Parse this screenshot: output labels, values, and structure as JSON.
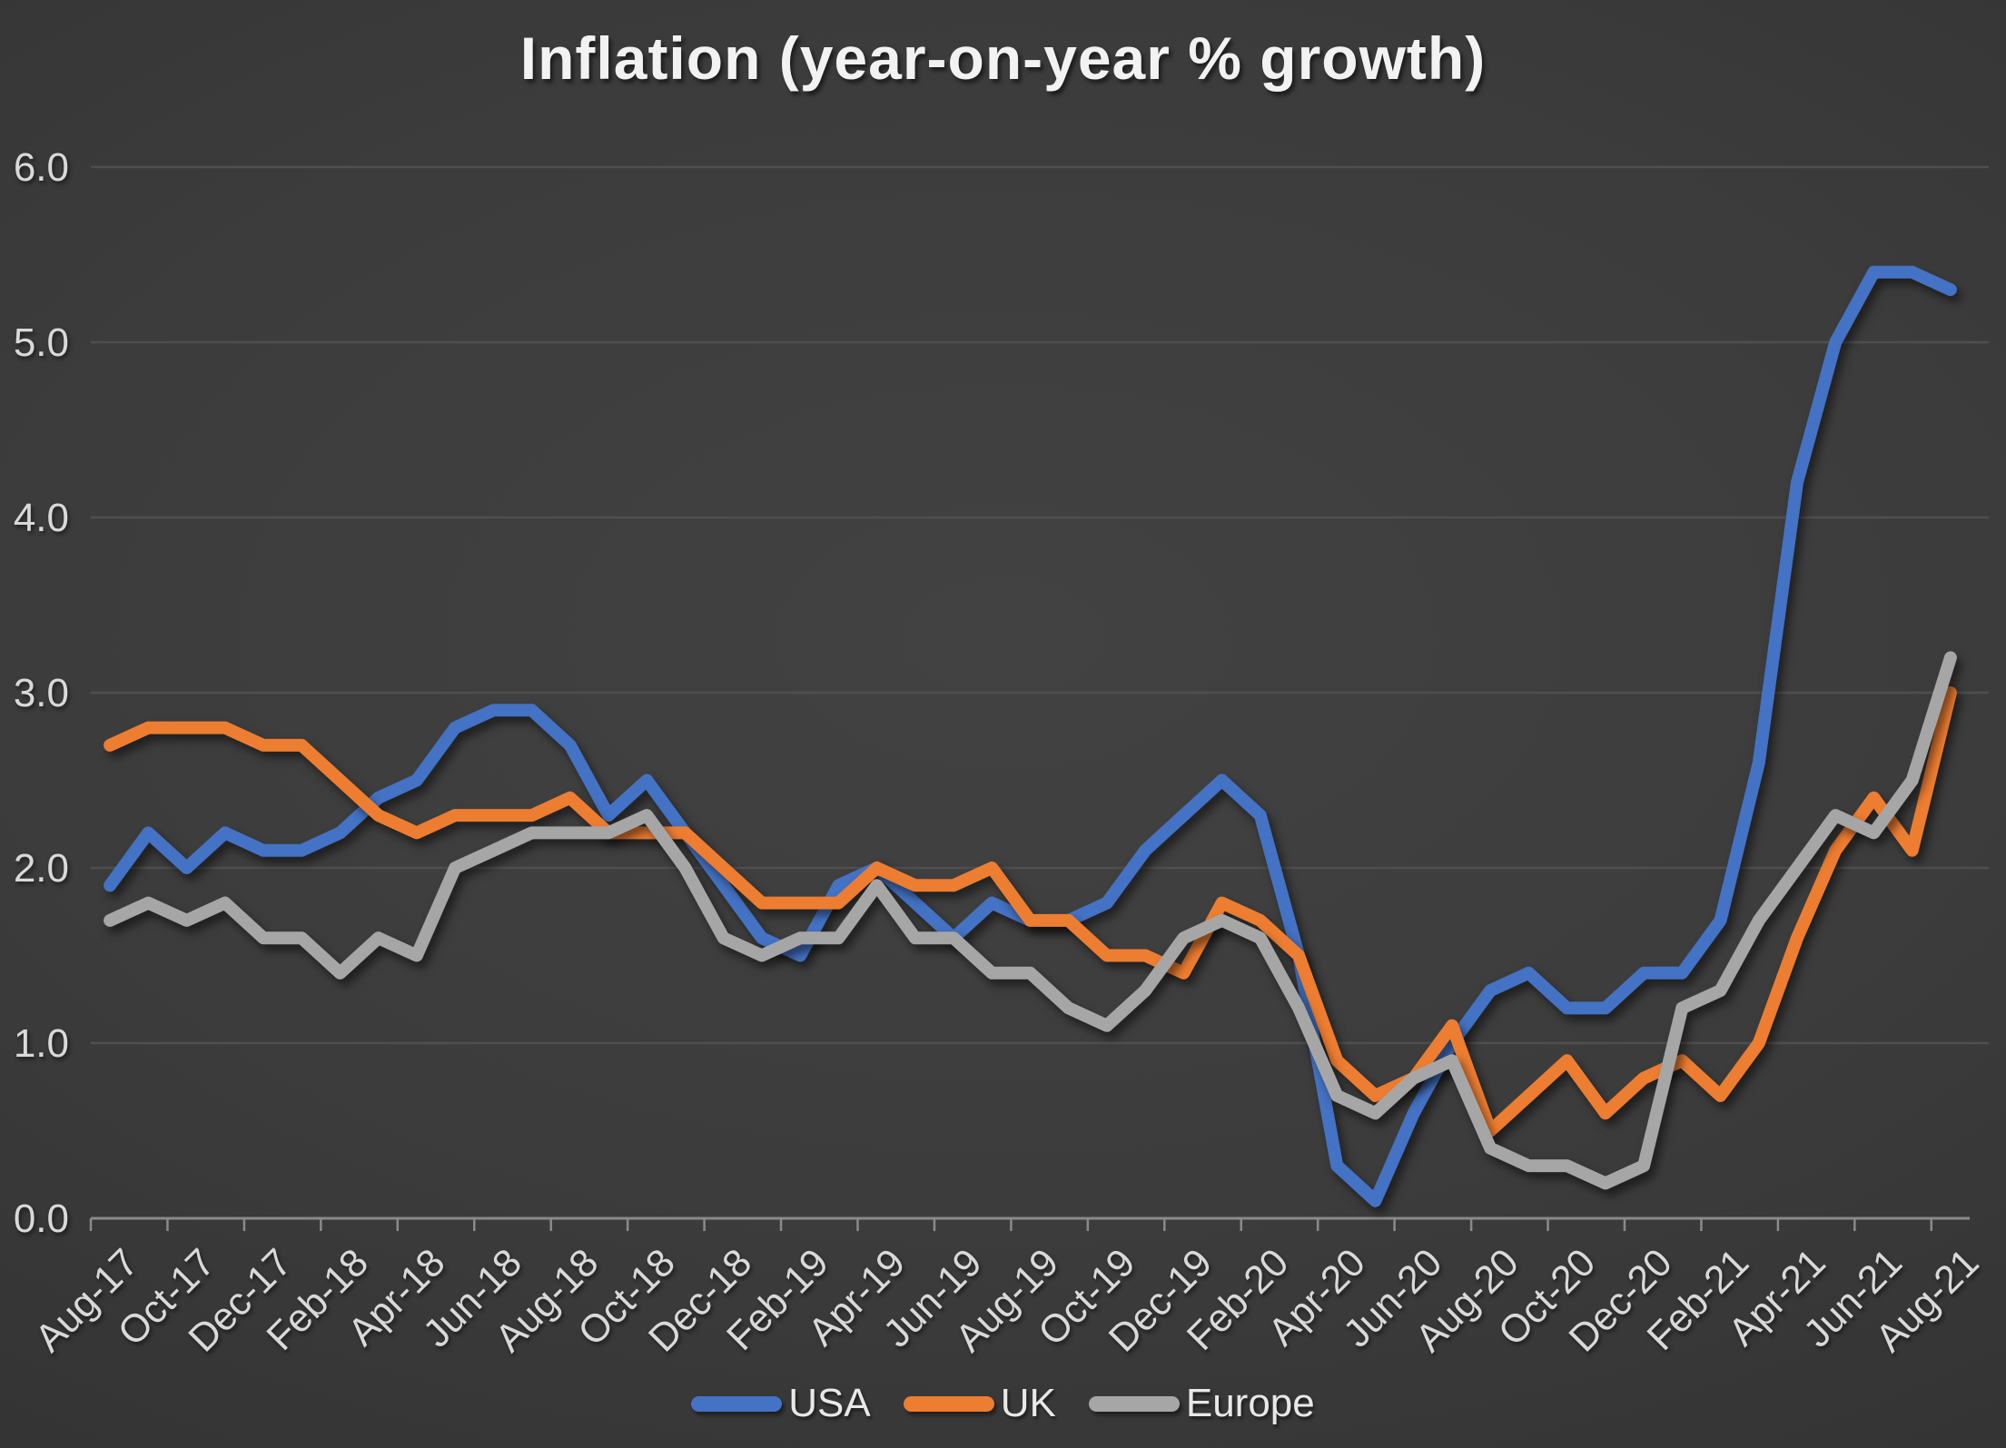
{
  "chart_data": {
    "type": "line",
    "title": "Inflation (year-on-year % growth)",
    "xlabel": "",
    "ylabel": "",
    "ylim": [
      0,
      6
    ],
    "y_tick_labels": [
      "0.0",
      "1.0",
      "2.0",
      "3.0",
      "4.0",
      "5.0",
      "6.0"
    ],
    "x_tick_every": 2,
    "grid": true,
    "legend_position": "bottom",
    "x_categories": [
      "Aug-17",
      "Sep-17",
      "Oct-17",
      "Nov-17",
      "Dec-17",
      "Jan-18",
      "Feb-18",
      "Mar-18",
      "Apr-18",
      "May-18",
      "Jun-18",
      "Jul-18",
      "Aug-18",
      "Sep-18",
      "Oct-18",
      "Nov-18",
      "Dec-18",
      "Jan-19",
      "Feb-19",
      "Mar-19",
      "Apr-19",
      "May-19",
      "Jun-19",
      "Jul-19",
      "Aug-19",
      "Sep-19",
      "Oct-19",
      "Nov-19",
      "Dec-19",
      "Jan-20",
      "Feb-20",
      "Mar-20",
      "Apr-20",
      "May-20",
      "Jun-20",
      "Jul-20",
      "Aug-20",
      "Sep-20",
      "Oct-20",
      "Nov-20",
      "Dec-20",
      "Jan-21",
      "Feb-21",
      "Mar-21",
      "Apr-21",
      "May-21",
      "Jun-21",
      "Jul-21",
      "Aug-21"
    ],
    "series": [
      {
        "name": "USA",
        "color": "#4472C4",
        "values": [
          1.9,
          2.2,
          2.0,
          2.2,
          2.1,
          2.1,
          2.2,
          2.4,
          2.5,
          2.8,
          2.9,
          2.9,
          2.7,
          2.3,
          2.5,
          2.2,
          1.9,
          1.6,
          1.5,
          1.9,
          2.0,
          1.8,
          1.6,
          1.8,
          1.7,
          1.7,
          1.8,
          2.1,
          2.3,
          2.5,
          2.3,
          1.5,
          0.3,
          0.1,
          0.6,
          1.0,
          1.3,
          1.4,
          1.2,
          1.2,
          1.4,
          1.4,
          1.7,
          2.6,
          4.2,
          5.0,
          5.4,
          5.4,
          5.3
        ]
      },
      {
        "name": "UK",
        "color": "#ED7D31",
        "values": [
          2.7,
          2.8,
          2.8,
          2.8,
          2.7,
          2.7,
          2.5,
          2.3,
          2.2,
          2.3,
          2.3,
          2.3,
          2.4,
          2.2,
          2.2,
          2.2,
          2.0,
          1.8,
          1.8,
          1.8,
          2.0,
          1.9,
          1.9,
          2.0,
          1.7,
          1.7,
          1.5,
          1.5,
          1.4,
          1.8,
          1.7,
          1.5,
          0.9,
          0.7,
          0.8,
          1.1,
          0.5,
          0.7,
          0.9,
          0.6,
          0.8,
          0.9,
          0.7,
          1.0,
          1.6,
          2.1,
          2.4,
          2.1,
          3.0
        ]
      },
      {
        "name": "Europe",
        "color": "#A6A6A6",
        "values": [
          1.7,
          1.8,
          1.7,
          1.8,
          1.6,
          1.6,
          1.4,
          1.6,
          1.5,
          2.0,
          2.1,
          2.2,
          2.2,
          2.2,
          2.3,
          2.0,
          1.6,
          1.5,
          1.6,
          1.6,
          1.9,
          1.6,
          1.6,
          1.4,
          1.4,
          1.2,
          1.1,
          1.3,
          1.6,
          1.7,
          1.6,
          1.2,
          0.7,
          0.6,
          0.8,
          0.9,
          0.4,
          0.3,
          0.3,
          0.2,
          0.3,
          1.2,
          1.3,
          1.7,
          2.0,
          2.3,
          2.2,
          2.5,
          3.2
        ]
      }
    ],
    "colors": {
      "axis": "#8a8a8a",
      "gridline": "#4f4f4f",
      "tick_label": "#d9d9d9",
      "title": "#f2f2f2",
      "legend_label": "#e8e8e8"
    }
  }
}
